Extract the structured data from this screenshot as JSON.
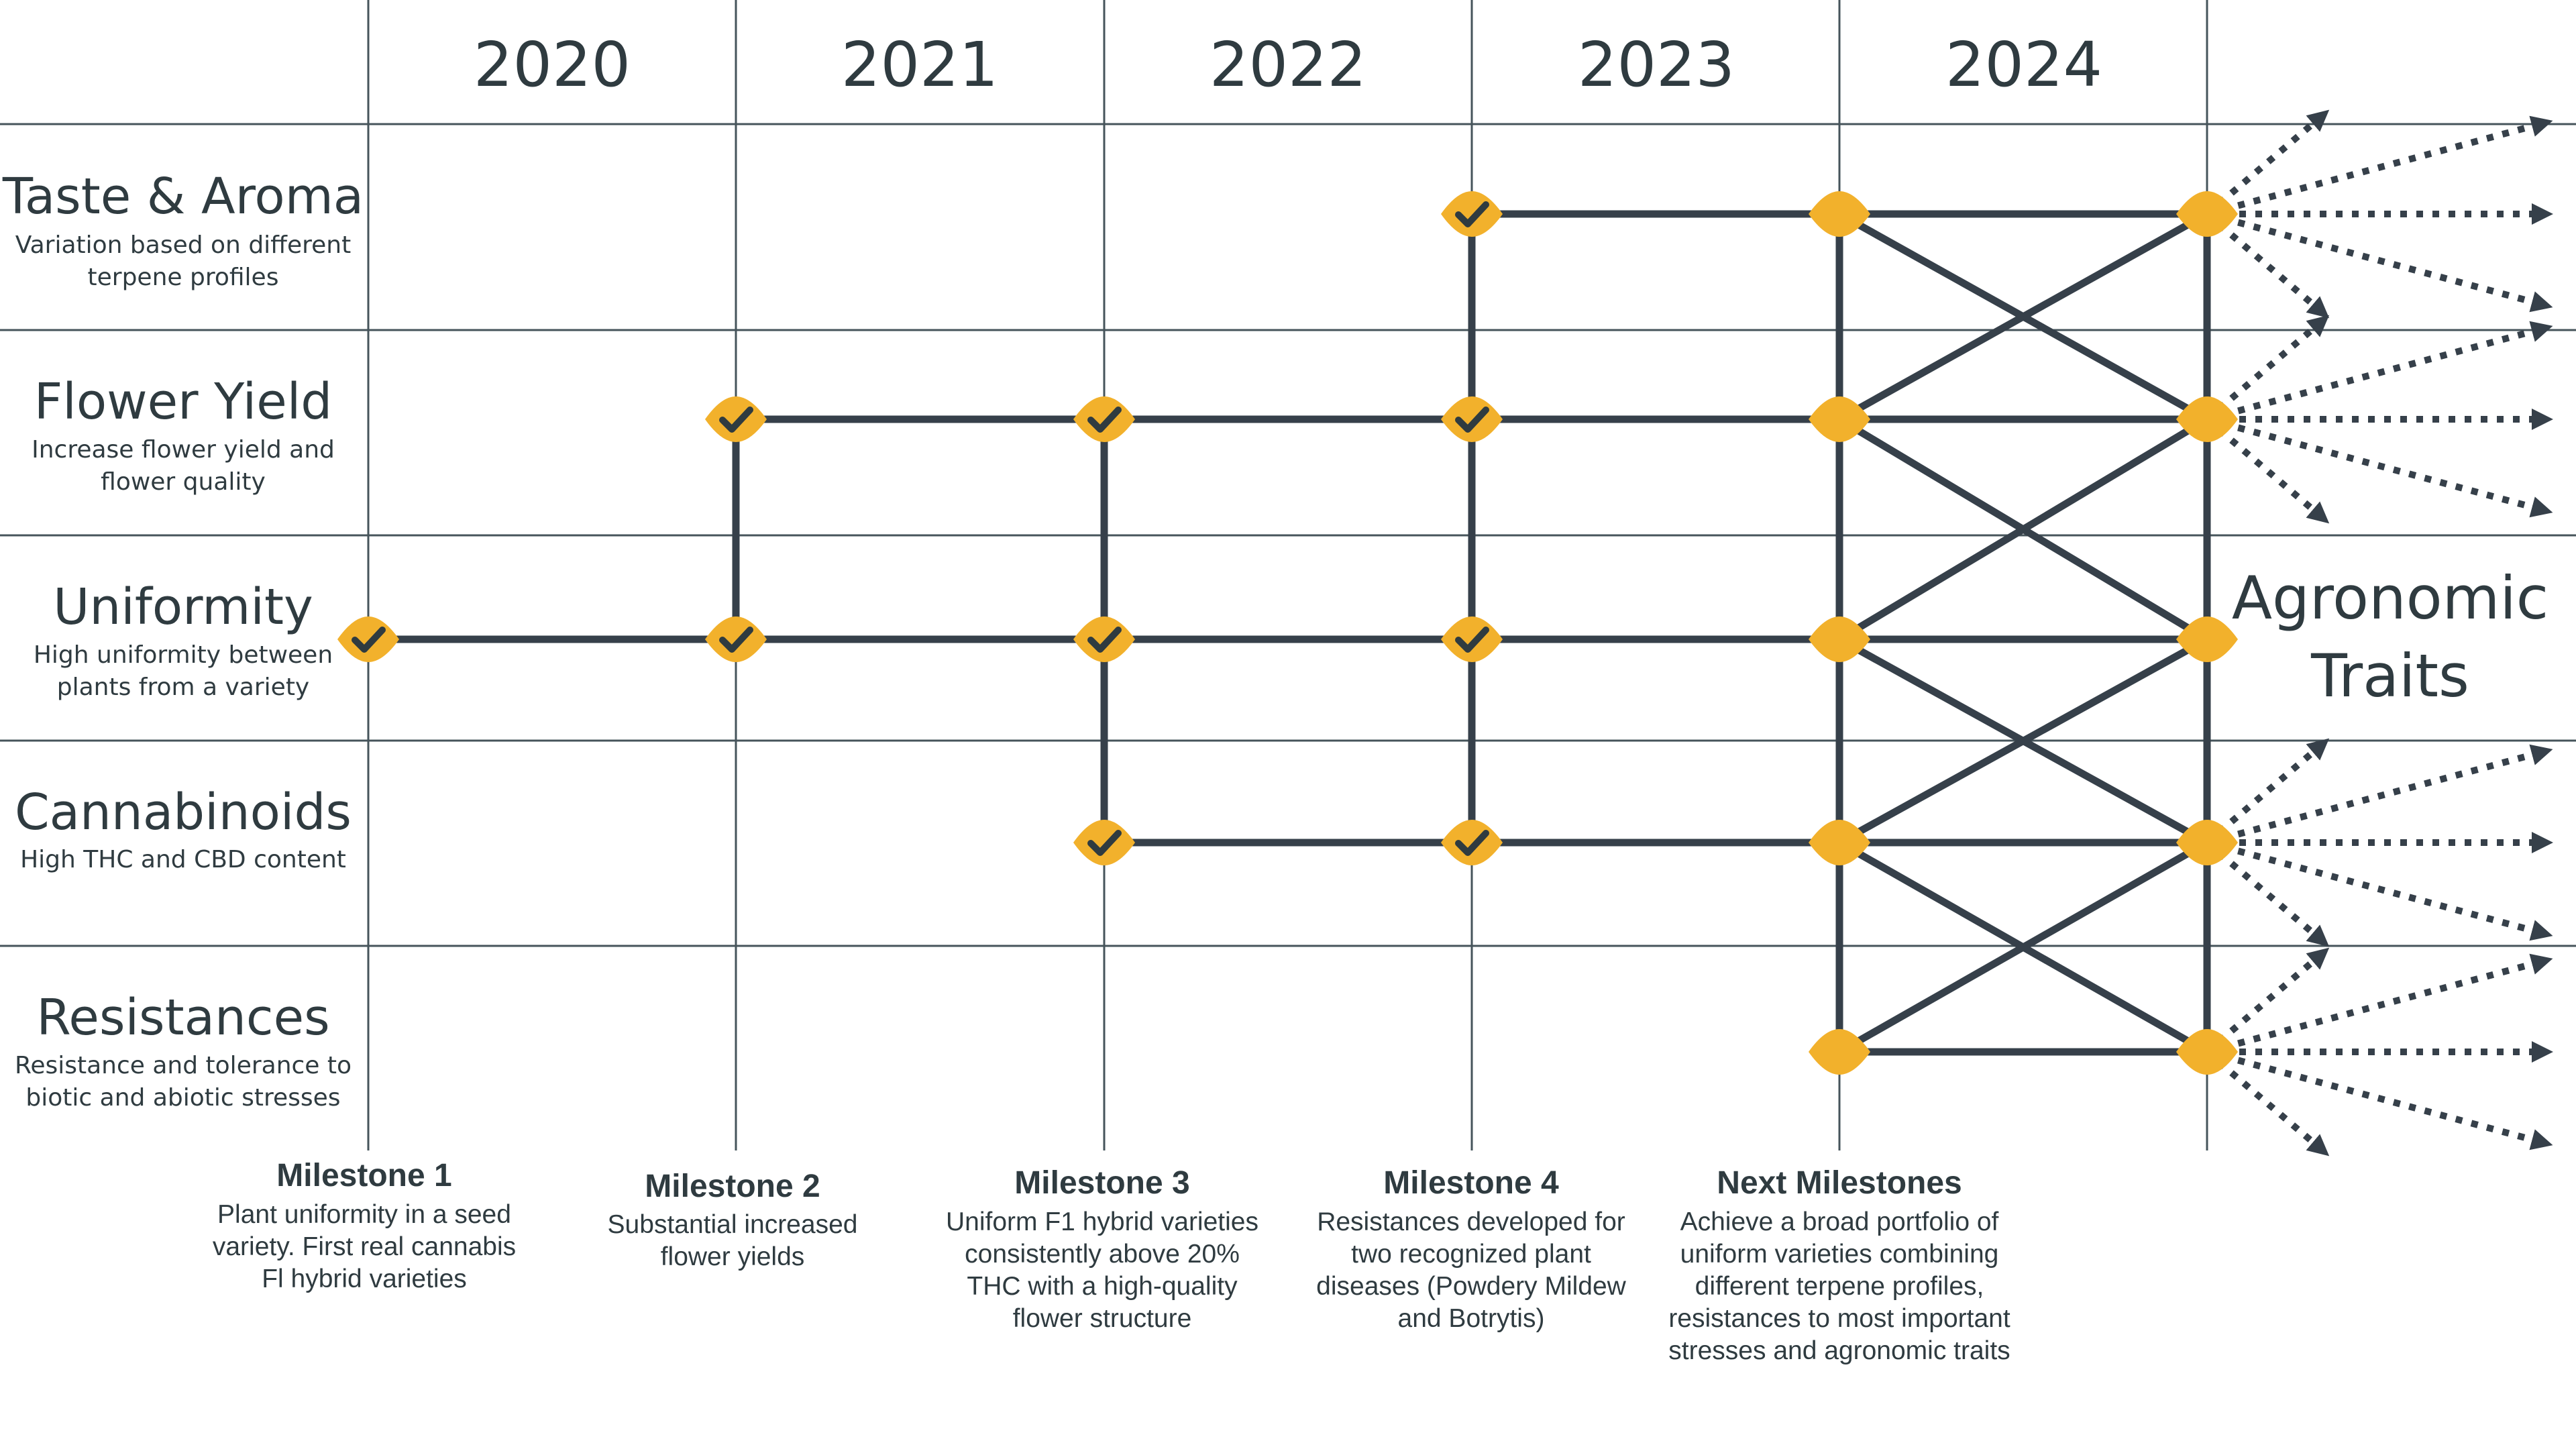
{
  "colors": {
    "grid": "#46545b",
    "line": "#36404a",
    "node": "#f2b12c",
    "check": "#2f3b40",
    "text": "#2f3b40"
  },
  "years": [
    "2020",
    "2021",
    "2022",
    "2023",
    "2024"
  ],
  "rows": [
    {
      "title": "Taste & Aroma",
      "subtitle": [
        "Variation based on different",
        "terpene profiles"
      ]
    },
    {
      "title": "Flower Yield",
      "subtitle": [
        "Increase flower yield and",
        "flower quality"
      ]
    },
    {
      "title": "Uniformity",
      "subtitle": [
        "High uniformity between",
        "plants from a variety"
      ]
    },
    {
      "title": "Cannabinoids",
      "subtitle": [
        "High THC and CBD content"
      ]
    },
    {
      "title": "Resistances",
      "subtitle": [
        "Resistance and tolerance to",
        "biotic and abiotic stresses"
      ]
    }
  ],
  "milestones": [
    {
      "title": "Milestone 1",
      "lines": [
        "Plant uniformity in a seed",
        "variety. First real cannabis",
        "Fl hybrid varieties"
      ]
    },
    {
      "title": "Milestone 2",
      "lines": [
        "Substantial increased",
        "flower yields"
      ]
    },
    {
      "title": "Milestone 3",
      "lines": [
        "Uniform F1 hybrid varieties",
        "consistently above 20%",
        "THC with a high-quality",
        "flower structure"
      ]
    },
    {
      "title": "Milestone 4",
      "lines": [
        "Resistances developed for",
        "two recognized plant",
        "diseases (Powdery Mildew",
        "and Botrytis)"
      ]
    },
    {
      "title": "Next Milestones",
      "lines": [
        "Achieve a broad portfolio of",
        "uniform varieties combining",
        "different terpene profiles,",
        "resistances to most important",
        "stresses and agronomic traits"
      ]
    }
  ],
  "side_label": [
    "Agronomic",
    "Traits"
  ],
  "checked_nodes": [
    {
      "col": 0,
      "row": 2
    },
    {
      "col": 1,
      "row": 1
    },
    {
      "col": 1,
      "row": 2
    },
    {
      "col": 2,
      "row": 1
    },
    {
      "col": 2,
      "row": 2
    },
    {
      "col": 2,
      "row": 3
    },
    {
      "col": 3,
      "row": 0
    },
    {
      "col": 3,
      "row": 1
    },
    {
      "col": 3,
      "row": 2
    },
    {
      "col": 3,
      "row": 3
    }
  ],
  "future_nodes": [
    {
      "col": 4,
      "row": 0
    },
    {
      "col": 4,
      "row": 1
    },
    {
      "col": 4,
      "row": 2
    },
    {
      "col": 4,
      "row": 3
    },
    {
      "col": 4,
      "row": 4
    },
    {
      "col": 5,
      "row": 0
    },
    {
      "col": 5,
      "row": 1
    },
    {
      "col": 5,
      "row": 2
    },
    {
      "col": 5,
      "row": 3
    },
    {
      "col": 5,
      "row": 4
    }
  ],
  "connections": [
    {
      "from": [
        0,
        2
      ],
      "to": [
        1,
        2
      ]
    },
    {
      "from": [
        1,
        2
      ],
      "to": [
        1,
        1
      ]
    },
    {
      "from": [
        1,
        1
      ],
      "to": [
        2,
        1
      ]
    },
    {
      "from": [
        1,
        2
      ],
      "to": [
        2,
        2
      ]
    },
    {
      "from": [
        2,
        1
      ],
      "to": [
        2,
        2
      ]
    },
    {
      "from": [
        2,
        2
      ],
      "to": [
        2,
        3
      ]
    },
    {
      "from": [
        2,
        1
      ],
      "to": [
        3,
        1
      ]
    },
    {
      "from": [
        2,
        2
      ],
      "to": [
        3,
        2
      ]
    },
    {
      "from": [
        2,
        3
      ],
      "to": [
        3,
        3
      ]
    },
    {
      "from": [
        3,
        0
      ],
      "to": [
        3,
        1
      ]
    },
    {
      "from": [
        3,
        1
      ],
      "to": [
        3,
        2
      ]
    },
    {
      "from": [
        3,
        2
      ],
      "to": [
        3,
        3
      ]
    },
    {
      "from": [
        3,
        0
      ],
      "to": [
        4,
        0
      ]
    },
    {
      "from": [
        3,
        1
      ],
      "to": [
        4,
        1
      ]
    },
    {
      "from": [
        3,
        2
      ],
      "to": [
        4,
        2
      ]
    },
    {
      "from": [
        3,
        3
      ],
      "to": [
        4,
        3
      ]
    },
    {
      "from": [
        4,
        0
      ],
      "to": [
        4,
        4
      ]
    },
    {
      "from": [
        5,
        0
      ],
      "to": [
        5,
        4
      ]
    },
    {
      "from": [
        4,
        0
      ],
      "to": [
        5,
        0
      ]
    },
    {
      "from": [
        4,
        1
      ],
      "to": [
        5,
        1
      ]
    },
    {
      "from": [
        4,
        2
      ],
      "to": [
        5,
        2
      ]
    },
    {
      "from": [
        4,
        3
      ],
      "to": [
        5,
        3
      ]
    },
    {
      "from": [
        4,
        4
      ],
      "to": [
        5,
        4
      ]
    },
    {
      "from": [
        4,
        0
      ],
      "to": [
        5,
        1
      ]
    },
    {
      "from": [
        4,
        1
      ],
      "to": [
        5,
        0
      ]
    },
    {
      "from": [
        4,
        1
      ],
      "to": [
        5,
        2
      ]
    },
    {
      "from": [
        4,
        2
      ],
      "to": [
        5,
        1
      ]
    },
    {
      "from": [
        4,
        2
      ],
      "to": [
        5,
        3
      ]
    },
    {
      "from": [
        4,
        3
      ],
      "to": [
        5,
        2
      ]
    },
    {
      "from": [
        4,
        3
      ],
      "to": [
        5,
        4
      ]
    },
    {
      "from": [
        4,
        4
      ],
      "to": [
        5,
        3
      ]
    }
  ],
  "arrow_rows": [
    0,
    1,
    3,
    4
  ]
}
